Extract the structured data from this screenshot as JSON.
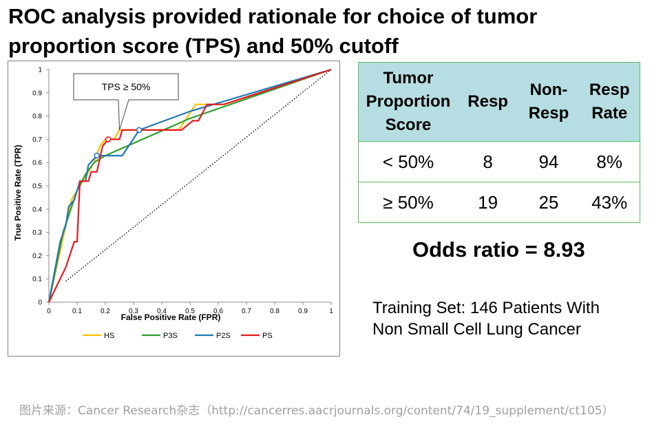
{
  "title": "ROC analysis provided rationale for choice of tumor proportion score (TPS) and 50% cutoff",
  "chart_data": {
    "type": "line",
    "xlabel": "False Positive Rate (FPR)",
    "ylabel": "True Positive Rate (TPR)",
    "xlim": [
      0,
      1
    ],
    "ylim": [
      0,
      1
    ],
    "x_ticks": [
      "0",
      "0.1",
      "0.2",
      "0.3",
      "0.4",
      "0.5",
      "0.6",
      "0.7",
      "0.8",
      "0.9",
      "1"
    ],
    "y_ticks": [
      "0",
      "0.1",
      "0.2",
      "0.3",
      "0.4",
      "0.5",
      "0.6",
      "0.7",
      "0.8",
      "0.9",
      "1"
    ],
    "grid": false,
    "legend_position": "bottom",
    "reference_line": {
      "style": "dotted",
      "points": [
        [
          0.06,
          0.09
        ],
        [
          1,
          1
        ]
      ]
    },
    "annotation": {
      "text": "TPS ≥ 50%",
      "x": 0.25,
      "y": 0.74
    },
    "series": [
      {
        "name": "HS",
        "color": "#ffc000",
        "points": [
          [
            0,
            0
          ],
          [
            0.02,
            0.11
          ],
          [
            0.04,
            0.22
          ],
          [
            0.06,
            0.33
          ],
          [
            0.08,
            0.44
          ],
          [
            0.1,
            0.48
          ],
          [
            0.12,
            0.52
          ],
          [
            0.14,
            0.56
          ],
          [
            0.16,
            0.6
          ],
          [
            0.18,
            0.67
          ],
          [
            0.2,
            0.7
          ],
          [
            0.23,
            0.7
          ],
          [
            0.25,
            0.74
          ],
          [
            0.46,
            0.74
          ],
          [
            0.52,
            0.85
          ],
          [
            0.55,
            0.85
          ],
          [
            0.62,
            0.85
          ],
          [
            1,
            1
          ]
        ]
      },
      {
        "name": "P3S",
        "color": "#2ca02c",
        "points": [
          [
            0,
            0
          ],
          [
            0.05,
            0.3
          ],
          [
            0.1,
            0.48
          ],
          [
            0.13,
            0.55
          ],
          [
            0.16,
            0.6
          ],
          [
            0.2,
            0.63
          ],
          [
            0.5,
            0.79
          ],
          [
            1,
            1
          ]
        ]
      },
      {
        "name": "P2S",
        "color": "#1f77b4",
        "points": [
          [
            0,
            0
          ],
          [
            0.04,
            0.26
          ],
          [
            0.06,
            0.33
          ],
          [
            0.07,
            0.41
          ],
          [
            0.09,
            0.44
          ],
          [
            0.1,
            0.48
          ],
          [
            0.11,
            0.52
          ],
          [
            0.13,
            0.52
          ],
          [
            0.14,
            0.59
          ],
          [
            0.17,
            0.63
          ],
          [
            0.26,
            0.63
          ],
          [
            0.32,
            0.74
          ],
          [
            0.5,
            0.82
          ],
          [
            1,
            1
          ]
        ]
      },
      {
        "name": "PS",
        "color": "#e41a1c",
        "points": [
          [
            0,
            0
          ],
          [
            0.06,
            0.15
          ],
          [
            0.09,
            0.26
          ],
          [
            0.1,
            0.26
          ],
          [
            0.11,
            0.52
          ],
          [
            0.14,
            0.52
          ],
          [
            0.15,
            0.56
          ],
          [
            0.17,
            0.56
          ],
          [
            0.19,
            0.67
          ],
          [
            0.21,
            0.7
          ],
          [
            0.25,
            0.7
          ],
          [
            0.26,
            0.74
          ],
          [
            0.47,
            0.74
          ],
          [
            0.51,
            0.78
          ],
          [
            0.53,
            0.78
          ],
          [
            0.56,
            0.85
          ],
          [
            0.62,
            0.85
          ],
          [
            1,
            1
          ]
        ]
      }
    ],
    "markers": [
      {
        "series": "PS",
        "x": 0.21,
        "y": 0.7
      },
      {
        "series": "P2S",
        "x": 0.17,
        "y": 0.63
      },
      {
        "series": "P2S",
        "x": 0.32,
        "y": 0.74
      }
    ]
  },
  "table": {
    "headers": [
      "Tumor Proportion Score",
      "Resp",
      "Non-Resp",
      "Resp Rate"
    ],
    "rows": [
      [
        "< 50%",
        "8",
        "94",
        "8%"
      ],
      [
        "≥ 50%",
        "19",
        "25",
        "43%"
      ]
    ],
    "header_bg": "#b6dde1",
    "border_color": "#5cb85c"
  },
  "odds_ratio": "Odds ratio = 8.93",
  "training_note": "Training Set: 146 Patients With Non Small Cell Lung Cancer",
  "source_caption": "图片来源：Cancer Research杂志（http://cancerres.aacrjournals.org/content/74/19_supplement/ct105）"
}
